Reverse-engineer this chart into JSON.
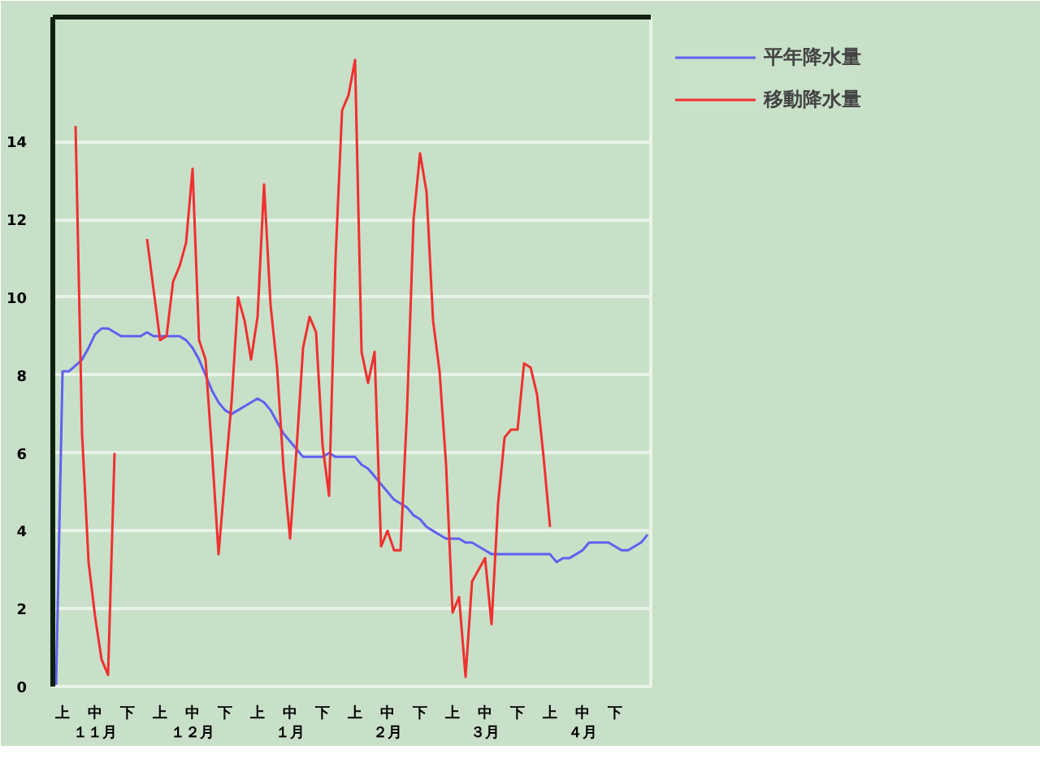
{
  "chart_data": {
    "type": "line",
    "ylim": [
      0,
      17.2
    ],
    "categories": [
      null,
      "上",
      null,
      null,
      null,
      null,
      "中１１月",
      null,
      null,
      null,
      null,
      "下",
      null,
      null,
      null,
      null,
      "上",
      null,
      null,
      null,
      null,
      "中１２月",
      null,
      null,
      null,
      null,
      "下",
      null,
      null,
      null,
      null,
      "上",
      null,
      null,
      null,
      null,
      "中１月",
      null,
      null,
      null,
      null,
      "下",
      null,
      null,
      null,
      null,
      "上",
      null,
      null,
      null,
      null,
      "中２月",
      null,
      null,
      null,
      null,
      "下",
      null,
      null,
      null,
      null,
      "上",
      null,
      null,
      null,
      null,
      "中３月",
      null,
      null,
      null,
      null,
      "下",
      null,
      null,
      null,
      null,
      "上",
      null,
      null,
      null,
      null,
      "中４月",
      null,
      null,
      null,
      null,
      "下",
      null,
      null,
      null,
      null,
      null
    ],
    "yticks": [
      0,
      2,
      4,
      6,
      8,
      10,
      12,
      14
    ],
    "grid": "y",
    "legend": "top right",
    "marker": "none",
    "line_style": "solid",
    "series": [
      {
        "name": "平年降水量",
        "color": "#6060f0",
        "values": [
          0,
          8.1,
          8.1,
          8.25,
          8.4,
          8.7,
          9.05,
          9.2,
          9.2,
          9.1,
          9.0,
          9.0,
          9.0,
          9.0,
          9.1,
          9.0,
          9.0,
          9.0,
          9.0,
          9.0,
          8.9,
          8.7,
          8.4,
          8.0,
          7.6,
          7.3,
          7.1,
          7.0,
          7.1,
          7.2,
          7.3,
          7.4,
          7.3,
          7.1,
          6.8,
          6.5,
          6.3,
          6.1,
          5.9,
          5.9,
          5.9,
          5.9,
          6.0,
          5.9,
          5.9,
          5.9,
          5.9,
          5.7,
          5.6,
          5.4,
          5.2,
          5.0,
          4.8,
          4.7,
          4.6,
          4.4,
          4.3,
          4.1,
          4.0,
          3.9,
          3.8,
          3.8,
          3.8,
          3.7,
          3.7,
          3.6,
          3.5,
          3.4,
          3.4,
          3.4,
          3.4,
          3.4,
          3.4,
          3.4,
          3.4,
          3.4,
          3.4,
          3.2,
          3.3,
          3.3,
          3.4,
          3.5,
          3.7,
          3.7,
          3.7,
          3.7,
          3.6,
          3.5,
          3.5,
          3.6,
          3.7,
          3.9
        ]
      },
      {
        "name": "移動降水量",
        "color": "#f03030",
        "values": [
          null,
          null,
          null,
          14.4,
          6.5,
          3.2,
          1.8,
          0.7,
          0.3,
          6,
          null,
          null,
          null,
          null,
          11.5,
          10.2,
          8.9,
          9.0,
          10.4,
          10.8,
          11.4,
          13.3,
          8.9,
          8.4,
          6.0,
          3.4,
          5.4,
          7.3,
          10,
          9.4,
          8.4,
          9.5,
          12.9,
          9.8,
          8.2,
          5.6,
          3.8,
          6.1,
          8.7,
          9.5,
          9.1,
          6.2,
          4.9,
          11.0,
          14.8,
          15.2,
          16.1,
          8.6,
          7.8,
          8.6,
          3.6,
          4.0,
          3.5,
          3.5,
          7.1,
          12.0,
          13.7,
          12.7,
          9.4,
          8.1,
          5.7,
          1.9,
          2.3,
          0.25,
          2.7,
          3.0,
          3.3,
          1.6,
          4.7,
          6.4,
          6.6,
          6.6,
          8.3,
          8.2,
          7.5,
          5.9,
          4.1,
          null,
          null,
          null,
          null,
          null,
          null,
          null,
          null,
          null,
          null,
          null,
          null,
          null,
          null,
          null
        ]
      }
    ]
  }
}
